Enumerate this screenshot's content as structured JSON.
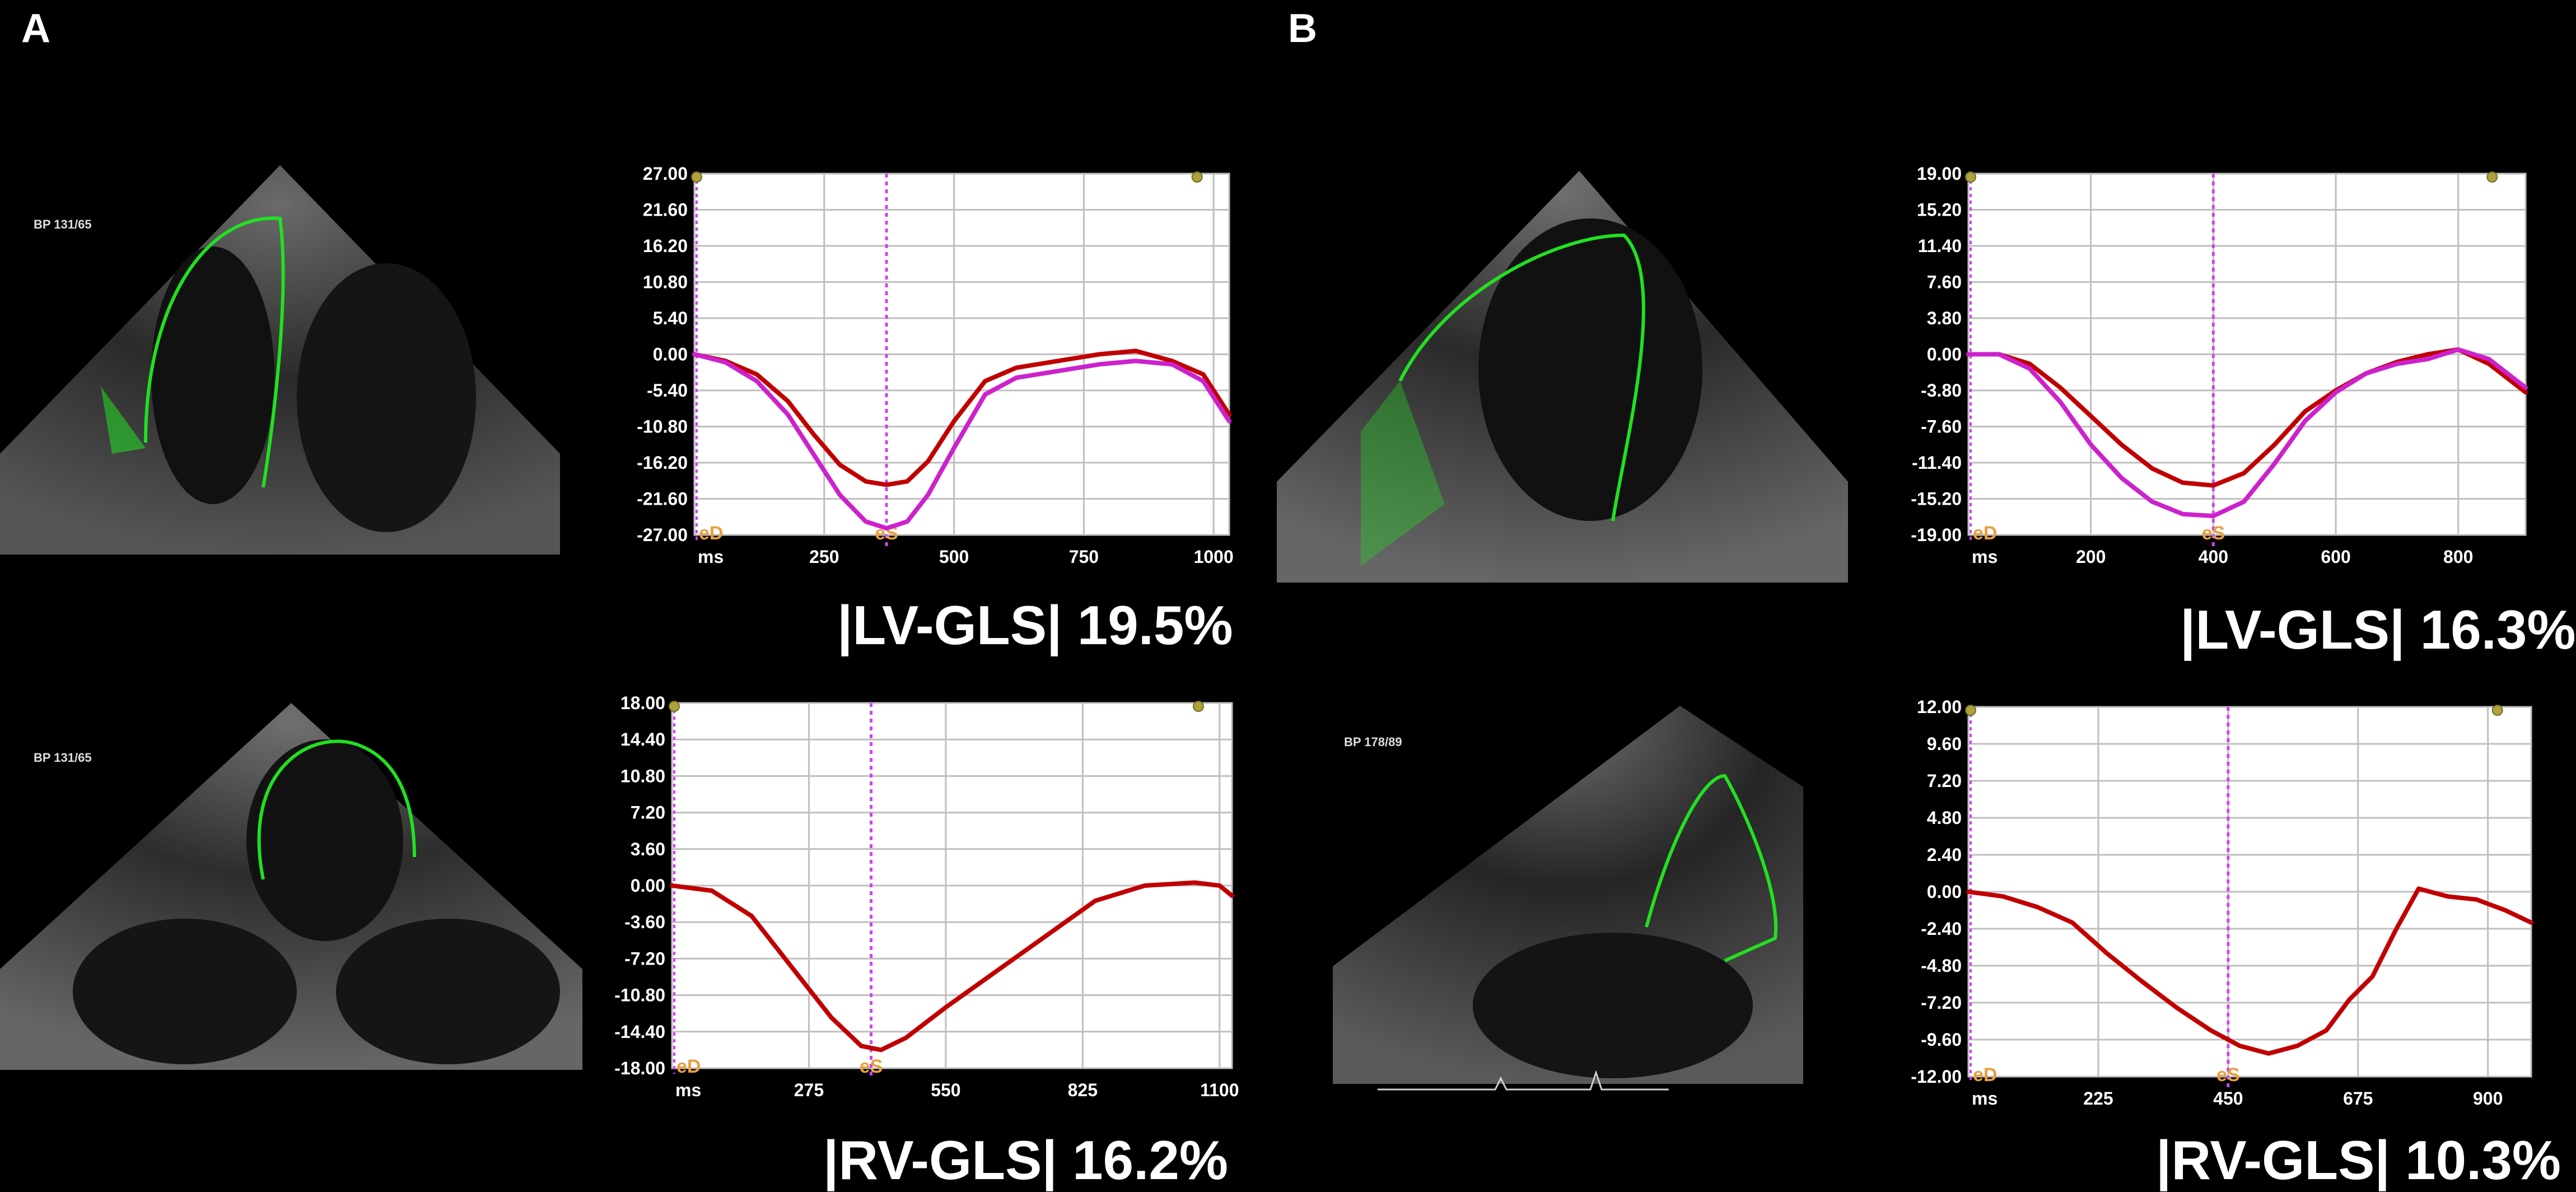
{
  "panels": [
    {
      "label": "A"
    },
    {
      "label": "B"
    }
  ],
  "echo_labels": {
    "a_lv_bp": "BP 131/65",
    "a_rv_bp": "BP 131/65",
    "b_rv_bp": "BP 178/89"
  },
  "gls_labels": {
    "a_lv": "|LV-GLS| 19.5%",
    "a_rv": "|RV-GLS| 16.2%",
    "b_lv": "|LV-GLS| 16.3%",
    "b_rv": "|RV-GLS| 10.3%"
  },
  "colors": {
    "background": "#000000",
    "grid": "#bfbfbf",
    "curve_red": "#c00000",
    "curve_magenta": "#cc22cc",
    "es_line": "#cc44ee",
    "ed_line": "#cc44ee",
    "marker_text": "#e8a040",
    "tracing_green": "#22e022",
    "tracing_yellow": "#e0e000"
  },
  "chart_data": [
    {
      "id": "a_lv",
      "type": "line",
      "xlabel": "ms",
      "ed_label": "eD",
      "es_label": "eS",
      "ylim": [
        -27,
        27
      ],
      "yticks": [
        "27.00",
        "21.60",
        "16.20",
        "10.80",
        "5.40",
        "0.00",
        "-5.40",
        "-10.80",
        "-16.20",
        "-21.60",
        "-27.00"
      ],
      "xlim": [
        0,
        1030
      ],
      "xticks": [
        250,
        500,
        750,
        1000
      ],
      "xtick_labels": [
        "250",
        "500",
        "750",
        "1000"
      ],
      "es_x": 370,
      "series": [
        {
          "color": "red",
          "x": [
            0,
            60,
            120,
            180,
            230,
            280,
            330,
            370,
            410,
            450,
            500,
            560,
            620,
            700,
            780,
            850,
            920,
            980,
            1030
          ],
          "y": [
            0,
            -1,
            -3,
            -7,
            -12,
            -16.5,
            -19,
            -19.5,
            -19,
            -16,
            -10,
            -4,
            -2,
            -1,
            0,
            0.5,
            -1,
            -3,
            -9
          ]
        },
        {
          "color": "magenta",
          "x": [
            0,
            60,
            120,
            180,
            230,
            280,
            330,
            370,
            410,
            450,
            500,
            560,
            620,
            700,
            780,
            850,
            920,
            980,
            1030
          ],
          "y": [
            0,
            -1.2,
            -4,
            -9,
            -15,
            -21,
            -25,
            -26,
            -25,
            -21,
            -14,
            -6,
            -3.5,
            -2.5,
            -1.5,
            -1,
            -1.5,
            -4,
            -10
          ]
        }
      ]
    },
    {
      "id": "a_rv",
      "type": "line",
      "xlabel": "ms",
      "ed_label": "eD",
      "es_label": "eS",
      "ylim": [
        -18,
        18
      ],
      "yticks": [
        "18.00",
        "14.40",
        "10.80",
        "7.20",
        "3.60",
        "0.00",
        "-3.60",
        "-7.20",
        "-10.80",
        "-14.40",
        "-18.00"
      ],
      "xlim": [
        0,
        1125
      ],
      "xticks": [
        275,
        550,
        825,
        1100
      ],
      "xtick_labels": [
        "275",
        "550",
        "825",
        "1100"
      ],
      "es_x": 400,
      "series": [
        {
          "color": "red",
          "x": [
            0,
            80,
            160,
            240,
            320,
            380,
            420,
            470,
            550,
            650,
            750,
            850,
            950,
            1050,
            1100,
            1125
          ],
          "y": [
            0,
            -0.5,
            -3,
            -8,
            -13,
            -15.8,
            -16.2,
            -15,
            -12,
            -8.5,
            -5,
            -1.5,
            0,
            0.3,
            0,
            -1
          ]
        }
      ]
    },
    {
      "id": "b_lv",
      "type": "line",
      "xlabel": "ms",
      "ed_label": "eD",
      "es_label": "eS",
      "ylim": [
        -19,
        19
      ],
      "yticks": [
        "19.00",
        "15.20",
        "11.40",
        "7.60",
        "3.80",
        "0.00",
        "-3.80",
        "-7.60",
        "-11.40",
        "-15.20",
        "-19.00"
      ],
      "xlim": [
        0,
        910
      ],
      "xticks": [
        200,
        400,
        600,
        800
      ],
      "xtick_labels": [
        "200",
        "400",
        "600",
        "800"
      ],
      "es_x": 400,
      "series": [
        {
          "color": "red",
          "x": [
            0,
            50,
            100,
            150,
            200,
            250,
            300,
            350,
            400,
            450,
            500,
            550,
            600,
            650,
            700,
            750,
            800,
            850,
            910
          ],
          "y": [
            0,
            0,
            -1,
            -3.5,
            -6.5,
            -9.5,
            -12,
            -13.5,
            -13.8,
            -12.5,
            -9.5,
            -6,
            -3.8,
            -2,
            -0.8,
            0,
            0.5,
            -1,
            -4
          ]
        },
        {
          "color": "magenta",
          "x": [
            0,
            50,
            100,
            150,
            200,
            250,
            300,
            350,
            400,
            450,
            500,
            550,
            600,
            650,
            700,
            750,
            800,
            850,
            910
          ],
          "y": [
            0,
            0,
            -1.5,
            -5,
            -9.5,
            -13,
            -15.5,
            -16.8,
            -17,
            -15.5,
            -11.5,
            -7,
            -4,
            -2,
            -1,
            -0.5,
            0.5,
            -0.5,
            -3.5
          ]
        }
      ]
    },
    {
      "id": "b_rv",
      "type": "line",
      "xlabel": "ms",
      "ed_label": "eD",
      "es_label": "eS",
      "ylim": [
        -12,
        12
      ],
      "yticks": [
        "12.00",
        "9.60",
        "7.20",
        "4.80",
        "2.40",
        "0.00",
        "-2.40",
        "-4.80",
        "-7.20",
        "-9.60",
        "-12.00"
      ],
      "xlim": [
        0,
        975
      ],
      "xticks": [
        225,
        450,
        675,
        900
      ],
      "xtick_labels": [
        "225",
        "450",
        "675",
        "900"
      ],
      "es_x": 450,
      "series": [
        {
          "color": "red",
          "x": [
            0,
            60,
            120,
            180,
            240,
            300,
            360,
            420,
            470,
            520,
            570,
            620,
            660,
            700,
            740,
            780,
            830,
            880,
            930,
            975
          ],
          "y": [
            0,
            -0.3,
            -1,
            -2,
            -4,
            -5.8,
            -7.5,
            -9,
            -10,
            -10.5,
            -10,
            -9,
            -7,
            -5.5,
            -2.5,
            0.2,
            -0.3,
            -0.5,
            -1.2,
            -2
          ]
        }
      ]
    }
  ]
}
